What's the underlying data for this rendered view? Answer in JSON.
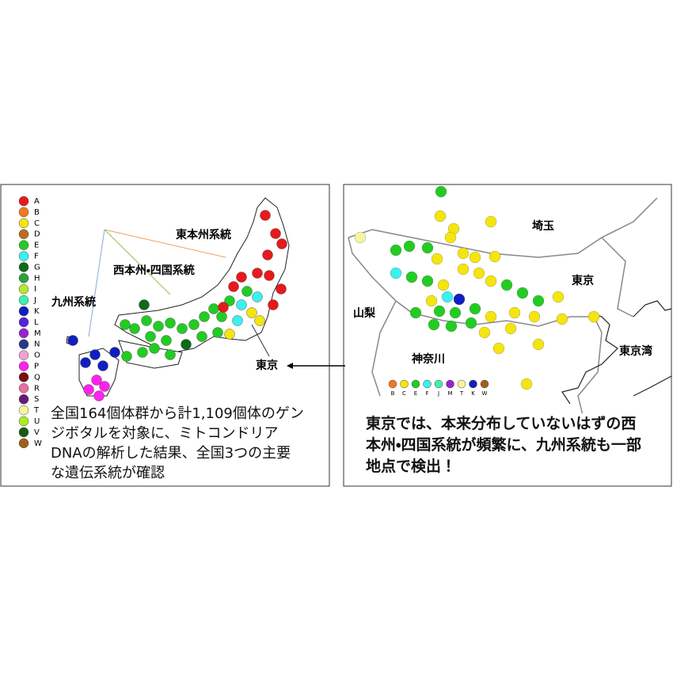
{
  "left_panel": {
    "legend": [
      {
        "label": "A",
        "color": "#e8191c"
      },
      {
        "label": "B",
        "color": "#f07a22"
      },
      {
        "label": "C",
        "color": "#f5e50e"
      },
      {
        "label": "D",
        "color": "#b86f1e"
      },
      {
        "label": "E",
        "color": "#22cc22"
      },
      {
        "label": "F",
        "color": "#3cf0f0"
      },
      {
        "label": "G",
        "color": "#0f6a1a"
      },
      {
        "label": "H",
        "color": "#2aa23a"
      },
      {
        "label": "I",
        "color": "#b5e830"
      },
      {
        "label": "J",
        "color": "#3ef0b0"
      },
      {
        "label": "K",
        "color": "#1020c0"
      },
      {
        "label": "L",
        "color": "#5522dd"
      },
      {
        "label": "M",
        "color": "#9a22cc"
      },
      {
        "label": "N",
        "color": "#233a8a"
      },
      {
        "label": "O",
        "color": "#f0a0d8"
      },
      {
        "label": "P",
        "color": "#ff22ee"
      },
      {
        "label": "Q",
        "color": "#7a1010"
      },
      {
        "label": "R",
        "color": "#e870a0"
      },
      {
        "label": "S",
        "color": "#6a1a7a"
      },
      {
        "label": "T",
        "color": "#f5f5a0"
      },
      {
        "label": "U",
        "color": "#aaee22"
      },
      {
        "label": "V",
        "color": "#1a5a10"
      },
      {
        "label": "W",
        "color": "#a0601a"
      }
    ],
    "lineage_labels": [
      "東本州系統",
      "西本州・四国系統",
      "九州系統"
    ],
    "tokyo_label": "東京",
    "caption": "全国164個体群から計1,109個体のゲンジボタルを対象に、ミトコンドリアDNAの解析した結果、全国3つの主要な遺伝系統が確認"
  },
  "right_panel": {
    "place_labels": [
      "埼玉",
      "東京",
      "山梨",
      "神奈川",
      "東京湾"
    ],
    "legend": [
      {
        "label": "B",
        "color": "#f07a22"
      },
      {
        "label": "C",
        "color": "#f5e50e"
      },
      {
        "label": "E",
        "color": "#22cc22"
      },
      {
        "label": "F",
        "color": "#3cf0f0"
      },
      {
        "label": "J",
        "color": "#3ef0b0"
      },
      {
        "label": "M",
        "color": "#9a22cc"
      },
      {
        "label": "T",
        "color": "#f5f5a0"
      },
      {
        "label": "K",
        "color": "#1020c0"
      },
      {
        "label": "W",
        "color": "#a0601a"
      }
    ],
    "caption": "東京では、本来分布していないはずの西本州・四国系統が頻繁に、九州系統も一部地点で検出！"
  }
}
